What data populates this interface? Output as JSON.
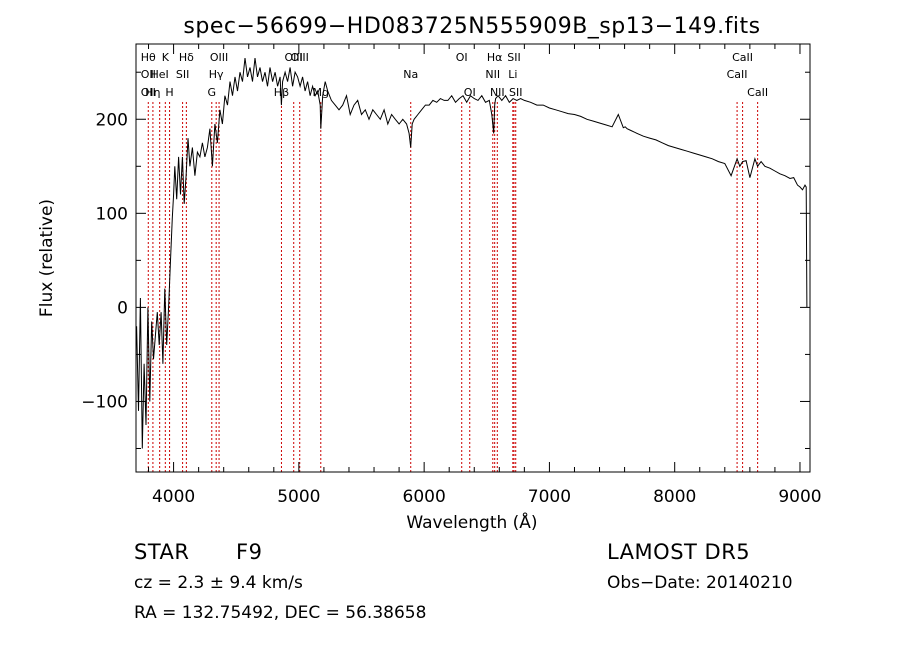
{
  "chart_data": {
    "type": "line",
    "title": "spec−56699−HD083725N555909B_sp13−149.fits",
    "xlabel": "Wavelength (Å)",
    "ylabel": "Flux (relative)",
    "xlim": [
      3700,
      9080
    ],
    "ylim": [
      -175,
      280
    ],
    "xticks": [
      4000,
      5000,
      6000,
      7000,
      8000,
      9000
    ],
    "yticks": [
      -100,
      0,
      100,
      200
    ],
    "grid": false,
    "line_color": "#000000",
    "marker_color": "#cc0000",
    "series": [
      {
        "x": [
          3705,
          3720,
          3735,
          3750,
          3765,
          3780,
          3795,
          3810,
          3825,
          3840,
          3855,
          3870,
          3885,
          3900,
          3915,
          3930,
          3945,
          3960,
          3975,
          3990,
          4000,
          4010,
          4025,
          4040,
          4055,
          4070,
          4085,
          4100,
          4115,
          4130,
          4150,
          4170,
          4190,
          4210,
          4230,
          4250,
          4270,
          4290,
          4310,
          4330,
          4350,
          4370,
          4390,
          4410,
          4430,
          4450,
          4470,
          4490,
          4510,
          4530,
          4550,
          4570,
          4590,
          4610,
          4630,
          4650,
          4670,
          4690,
          4710,
          4730,
          4750,
          4770,
          4790,
          4810,
          4830,
          4850,
          4861,
          4870,
          4890,
          4910,
          4930,
          4950,
          4970,
          4990,
          5010,
          5030,
          5050,
          5070,
          5090,
          5110,
          5130,
          5150,
          5170,
          5175,
          5190,
          5210,
          5230,
          5260,
          5290,
          5320,
          5350,
          5380,
          5410,
          5440,
          5470,
          5500,
          5530,
          5560,
          5590,
          5620,
          5650,
          5680,
          5710,
          5740,
          5770,
          5800,
          5830,
          5860,
          5880,
          5893,
          5905,
          5920,
          5950,
          5980,
          6010,
          6040,
          6070,
          6100,
          6130,
          6160,
          6190,
          6220,
          6250,
          6280,
          6310,
          6340,
          6370,
          6400,
          6430,
          6460,
          6490,
          6520,
          6540,
          6555,
          6563,
          6570,
          6590,
          6620,
          6650,
          6680,
          6710,
          6740,
          6770,
          6800,
          6850,
          6900,
          6950,
          7000,
          7050,
          7100,
          7150,
          7200,
          7250,
          7300,
          7350,
          7400,
          7450,
          7500,
          7550,
          7590,
          7605,
          7620,
          7650,
          7700,
          7750,
          7800,
          7850,
          7900,
          7950,
          8000,
          8050,
          8100,
          8150,
          8200,
          8250,
          8300,
          8350,
          8400,
          8450,
          8498,
          8520,
          8542,
          8570,
          8600,
          8640,
          8662,
          8690,
          8720,
          8760,
          8800,
          8840,
          8880,
          8920,
          8950,
          8980,
          9000,
          9020,
          9040,
          9050,
          9055
        ],
        "y": [
          -20,
          -110,
          10,
          -150,
          -60,
          -125,
          0,
          -100,
          -15,
          -55,
          -30,
          -5,
          -40,
          -5,
          -60,
          20,
          -40,
          0,
          50,
          95,
          120,
          150,
          115,
          160,
          120,
          160,
          110,
          140,
          180,
          150,
          170,
          140,
          165,
          160,
          175,
          160,
          170,
          190,
          150,
          195,
          175,
          210,
          195,
          225,
          215,
          240,
          225,
          245,
          230,
          250,
          240,
          265,
          245,
          255,
          240,
          265,
          245,
          255,
          240,
          250,
          235,
          255,
          240,
          250,
          235,
          245,
          215,
          240,
          250,
          240,
          255,
          235,
          250,
          245,
          235,
          245,
          230,
          240,
          225,
          235,
          225,
          230,
          215,
          190,
          225,
          240,
          230,
          220,
          215,
          210,
          215,
          225,
          205,
          215,
          220,
          205,
          210,
          200,
          210,
          205,
          200,
          210,
          195,
          205,
          200,
          195,
          200,
          195,
          185,
          170,
          195,
          200,
          205,
          210,
          215,
          215,
          220,
          218,
          222,
          220,
          220,
          225,
          218,
          222,
          225,
          218,
          225,
          222,
          220,
          225,
          218,
          220,
          205,
          185,
          215,
          222,
          225,
          220,
          225,
          218,
          222,
          220,
          222,
          220,
          218,
          215,
          215,
          212,
          210,
          208,
          206,
          205,
          203,
          200,
          198,
          196,
          194,
          192,
          205,
          191,
          192,
          190,
          188,
          185,
          182,
          180,
          178,
          175,
          172,
          170,
          168,
          166,
          164,
          162,
          160,
          158,
          155,
          153,
          140,
          158,
          150,
          155,
          156,
          138,
          158,
          150,
          155,
          150,
          148,
          145,
          142,
          140,
          137,
          138,
          130,
          128,
          125,
          130,
          128,
          0
        ]
      }
    ],
    "line_markers": [
      {
        "w": 3798,
        "labels": [
          {
            "t": "Hθ",
            "r": 1
          },
          {
            "t": "OII",
            "r": 2
          },
          {
            "t": "OII",
            "r": 3
          }
        ]
      },
      {
        "w": 3835,
        "labels": [
          {
            "t": "Hη",
            "r": 3
          }
        ]
      },
      {
        "w": 3889,
        "labels": [
          {
            "t": "HeI",
            "r": 2
          }
        ]
      },
      {
        "w": 3934,
        "labels": [
          {
            "t": "K",
            "r": 1
          }
        ]
      },
      {
        "w": 3968,
        "labels": [
          {
            "t": "H",
            "r": 3
          }
        ]
      },
      {
        "w": 4072,
        "labels": [
          {
            "t": "SII",
            "r": 2
          }
        ]
      },
      {
        "w": 4102,
        "labels": [
          {
            "t": "Hδ",
            "r": 1
          }
        ]
      },
      {
        "w": 4305,
        "labels": [
          {
            "t": "G",
            "r": 3
          }
        ]
      },
      {
        "w": 4340,
        "labels": [
          {
            "t": "Hγ",
            "r": 2
          }
        ]
      },
      {
        "w": 4363,
        "labels": [
          {
            "t": "OIII",
            "r": 1
          }
        ]
      },
      {
        "w": 4861,
        "labels": [
          {
            "t": "Hβ",
            "r": 3
          }
        ]
      },
      {
        "w": 4959,
        "labels": [
          {
            "t": "OIII",
            "r": 1
          }
        ]
      },
      {
        "w": 5007,
        "labels": [
          {
            "t": "OIII",
            "r": 1
          }
        ]
      },
      {
        "w": 5175,
        "labels": [
          {
            "t": "Mg",
            "r": 3
          }
        ]
      },
      {
        "w": 5893,
        "labels": [
          {
            "t": "Na",
            "r": 2
          }
        ]
      },
      {
        "w": 6300,
        "labels": [
          {
            "t": "OI",
            "r": 1
          }
        ]
      },
      {
        "w": 6364,
        "labels": [
          {
            "t": "OI",
            "r": 3
          }
        ]
      },
      {
        "w": 6548,
        "labels": [
          {
            "t": "NII",
            "r": 2
          }
        ]
      },
      {
        "w": 6563,
        "labels": [
          {
            "t": "Hα",
            "r": 1
          }
        ]
      },
      {
        "w": 6584,
        "labels": [
          {
            "t": "NII",
            "r": 3
          }
        ]
      },
      {
        "w": 6708,
        "labels": [
          {
            "t": "Li",
            "r": 2
          }
        ]
      },
      {
        "w": 6717,
        "labels": [
          {
            "t": "SII",
            "r": 1
          }
        ]
      },
      {
        "w": 6731,
        "labels": [
          {
            "t": "SII",
            "r": 3
          }
        ]
      },
      {
        "w": 8498,
        "labels": [
          {
            "t": "CaII",
            "r": 2
          }
        ]
      },
      {
        "w": 8542,
        "labels": [
          {
            "t": "CaII",
            "r": 1
          }
        ]
      },
      {
        "w": 8662,
        "labels": [
          {
            "t": "CaII",
            "r": 3
          }
        ]
      }
    ]
  },
  "info": {
    "object_class": "STAR",
    "subclass": "F9",
    "survey": "LAMOST  DR5",
    "redshift": "cz = 2.3 ± 9.4 km/s",
    "obs_date": "Obs−Date: 20140210",
    "coords": "RA = 132.75492, DEC =  56.38658"
  }
}
